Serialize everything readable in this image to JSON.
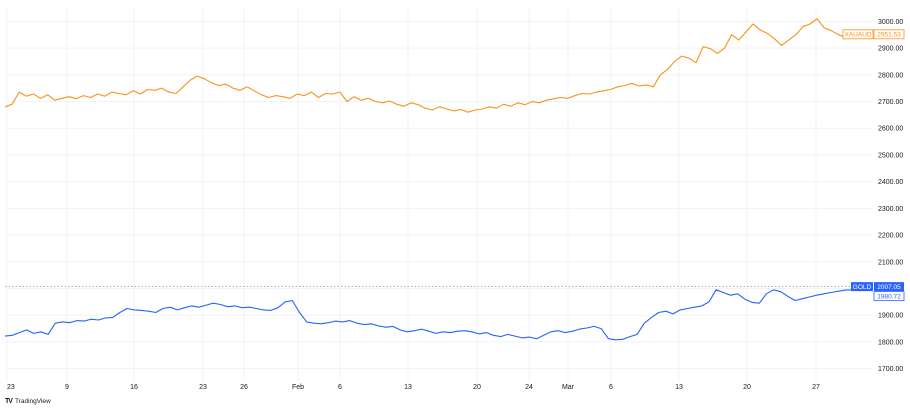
{
  "chart_data": {
    "type": "line",
    "title": "",
    "xlabel": "",
    "ylabel": "",
    "ylim": [
      1650,
      3050
    ],
    "y_ticks": [
      "3000.00",
      "2900.00",
      "2800.00",
      "2700.00",
      "2600.00",
      "2500.00",
      "2400.00",
      "2300.00",
      "2200.00",
      "2100.00",
      "2000.00",
      "1900.00",
      "1800.00",
      "1700.00"
    ],
    "x_ticks": [
      "23",
      "9",
      "16",
      "23",
      "26",
      "Feb",
      "6",
      "13",
      "20",
      "24",
      "Mar",
      "6",
      "13",
      "20",
      "27"
    ],
    "grid": true,
    "series": [
      {
        "name": "XAUAUD",
        "color": "#f7931a",
        "last_value": "2951.53",
        "values": [
          2680,
          2690,
          2735,
          2720,
          2728,
          2712,
          2725,
          2705,
          2712,
          2718,
          2710,
          2722,
          2715,
          2728,
          2720,
          2735,
          2730,
          2725,
          2740,
          2728,
          2745,
          2742,
          2750,
          2735,
          2730,
          2755,
          2780,
          2795,
          2785,
          2770,
          2760,
          2765,
          2750,
          2742,
          2755,
          2740,
          2725,
          2715,
          2722,
          2718,
          2712,
          2728,
          2722,
          2735,
          2715,
          2730,
          2728,
          2735,
          2700,
          2718,
          2705,
          2712,
          2700,
          2695,
          2702,
          2690,
          2682,
          2695,
          2688,
          2675,
          2668,
          2680,
          2672,
          2665,
          2670,
          2660,
          2668,
          2672,
          2680,
          2675,
          2690,
          2682,
          2695,
          2688,
          2700,
          2695,
          2705,
          2710,
          2715,
          2712,
          2722,
          2730,
          2728,
          2735,
          2740,
          2745,
          2755,
          2760,
          2768,
          2758,
          2762,
          2755,
          2800,
          2820,
          2850,
          2870,
          2862,
          2845,
          2905,
          2898,
          2880,
          2900,
          2950,
          2930,
          2960,
          2990,
          2968,
          2955,
          2935,
          2910,
          2930,
          2950,
          2980,
          2990,
          3010,
          2975,
          2965,
          2950,
          2940,
          2945,
          2950,
          2952
        ]
      },
      {
        "name": "GOLD",
        "color": "#2962ff",
        "last_value": "2007.05",
        "tag2": "1980.72",
        "values": [
          1822,
          1825,
          1835,
          1845,
          1832,
          1838,
          1828,
          1870,
          1875,
          1872,
          1880,
          1878,
          1885,
          1882,
          1890,
          1892,
          1910,
          1925,
          1920,
          1918,
          1915,
          1910,
          1925,
          1930,
          1920,
          1928,
          1935,
          1930,
          1938,
          1945,
          1940,
          1932,
          1935,
          1928,
          1930,
          1925,
          1920,
          1918,
          1928,
          1950,
          1955,
          1910,
          1875,
          1870,
          1868,
          1872,
          1878,
          1875,
          1880,
          1870,
          1865,
          1868,
          1860,
          1855,
          1858,
          1845,
          1838,
          1842,
          1848,
          1840,
          1832,
          1838,
          1835,
          1840,
          1842,
          1838,
          1830,
          1835,
          1825,
          1820,
          1828,
          1822,
          1815,
          1818,
          1812,
          1825,
          1838,
          1842,
          1835,
          1840,
          1848,
          1852,
          1858,
          1850,
          1812,
          1808,
          1810,
          1820,
          1828,
          1870,
          1892,
          1910,
          1915,
          1905,
          1920,
          1925,
          1930,
          1935,
          1950,
          1995,
          1985,
          1975,
          1980,
          1960,
          1948,
          1945,
          1980,
          1995,
          1988,
          1970,
          1955,
          1962,
          1968,
          1975,
          1980,
          1985,
          1990,
          1994,
          1995,
          2000,
          2007
        ]
      }
    ],
    "reference_line": 2007.05
  },
  "branding": {
    "logo_text": "TradingView",
    "logo_mark": "TV"
  }
}
